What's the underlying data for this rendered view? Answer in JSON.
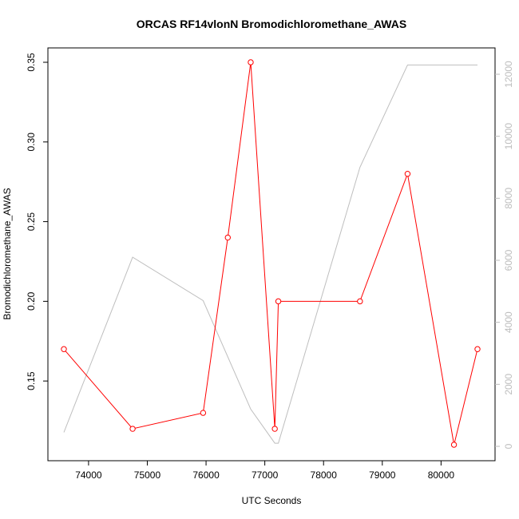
{
  "chart_data": {
    "type": "line",
    "title": "ORCAS RF14vlonN Bromodichloromethane_AWAS",
    "xlabel": "UTC Seconds",
    "ylabel": "Bromodichloromethane_AWAS",
    "xlim": [
      73350,
      80800
    ],
    "ylim": [
      0.1,
      0.35
    ],
    "y2lim": [
      -150,
      12450
    ],
    "x_ticks": [
      74000,
      75000,
      76000,
      77000,
      78000,
      79000,
      80000
    ],
    "y_ticks": [
      0.15,
      0.2,
      0.25,
      0.3,
      0.35
    ],
    "y_tick_labels": [
      "0.15",
      "0.20",
      "0.25",
      "0.30",
      "0.35"
    ],
    "y2_ticks": [
      0,
      2000,
      4000,
      6000,
      8000,
      10000,
      12000
    ],
    "series": [
      {
        "color": "#ff0000",
        "marker": "circle-open",
        "axis": "left",
        "x": [
          73580,
          74750,
          75950,
          76370,
          76760,
          77170,
          77230,
          78620,
          79430,
          80220,
          80620
        ],
        "values": [
          0.17,
          0.12,
          0.13,
          0.24,
          0.35,
          0.12,
          0.2,
          0.2,
          0.28,
          0.11,
          0.17
        ]
      },
      {
        "color": "#bebebe",
        "marker": "none",
        "axis": "right",
        "x": [
          73580,
          74750,
          75950,
          76760,
          77170,
          77230,
          78620,
          79430,
          80620
        ],
        "values": [
          450,
          6100,
          4700,
          1200,
          100,
          100,
          9000,
          12300,
          12300
        ]
      }
    ]
  }
}
